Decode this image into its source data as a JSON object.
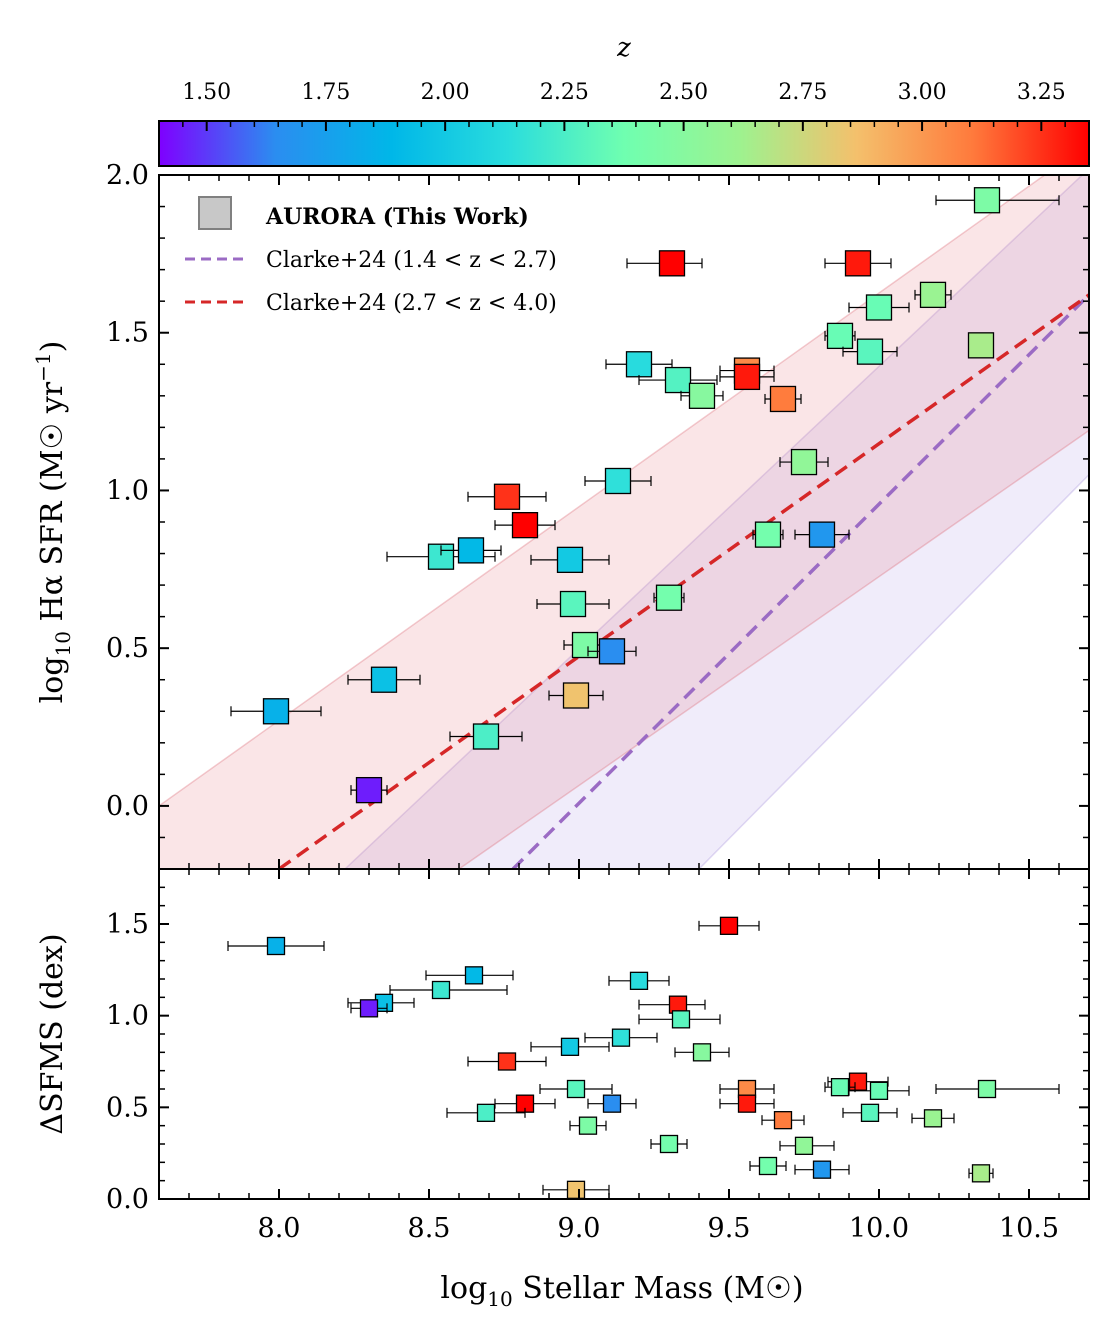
{
  "chart_data": {
    "type": "scatter",
    "colorbar": {
      "label": "z",
      "range": [
        1.4,
        3.35
      ],
      "ticks": [
        1.5,
        1.75,
        2.0,
        2.25,
        2.5,
        2.75,
        3.0,
        3.25
      ],
      "tick_labels": [
        "1.50",
        "1.75",
        "2.00",
        "2.25",
        "2.50",
        "2.75",
        "3.00",
        "3.25"
      ],
      "colormap": [
        "#7f00ff",
        "#2b8df0",
        "#00b7e8",
        "#2adddd",
        "#6fffb0",
        "#9ef28f",
        "#f4c06c",
        "#ff7a3c",
        "#ff0000"
      ]
    },
    "x_axis": {
      "label": "log10 Stellar Mass (M☉)",
      "label_main": "log",
      "label_sub": "10",
      "label_rest": " Stellar Mass (M☉)",
      "xlim": [
        7.6,
        10.7
      ],
      "ticks": [
        8.0,
        8.5,
        9.0,
        9.5,
        10.0,
        10.5
      ],
      "tick_labels": [
        "8.0",
        "8.5",
        "9.0",
        "9.5",
        "10.0",
        "10.5"
      ]
    },
    "top_panel": {
      "ylabel": "log10 Hα SFR (M☉ yr⁻¹)",
      "ylabel_main": "log",
      "ylabel_sub": "10",
      "ylabel_mid": " Hα SFR (M☉ yr",
      "ylabel_sup": "−1",
      "ylabel_end": ")",
      "ylim": [
        -0.2,
        2.0
      ],
      "ticks": [
        0.0,
        0.5,
        1.0,
        1.5,
        2.0
      ],
      "tick_labels": [
        "0.0",
        "0.5",
        "1.0",
        "1.5",
        "2.0"
      ],
      "legend": {
        "placement": "top-left",
        "aurora_label": "AURORA (This Work)",
        "clarke_low_label": "Clarke+24 (1.4 < z < 2.7)",
        "clarke_high_label": "Clarke+24 (2.7 < z < 4.0)",
        "marker_color": "#c8c8c8",
        "clarke_low_color": "#9b6bc4",
        "clarke_high_color": "#d62728"
      },
      "relations": [
        {
          "name": "Clarke+24 (1.4 < z < 2.7)",
          "color": "#9b6bc4",
          "line": [
            [
              8.78,
              -0.2
            ],
            [
              10.7,
              1.62
            ]
          ],
          "band_upper": [
            [
              8.22,
              -0.2
            ],
            [
              10.7,
              2.02
            ]
          ],
          "band_lower": [
            [
              9.4,
              -0.2
            ],
            [
              10.7,
              1.05
            ]
          ]
        },
        {
          "name": "Clarke+24 (2.7 < z < 4.0)",
          "color": "#d62728",
          "line": [
            [
              8.0,
              -0.2
            ],
            [
              10.7,
              1.62
            ]
          ],
          "band_upper": [
            [
              7.6,
              0.0
            ],
            [
              10.7,
              2.1
            ]
          ],
          "band_lower": [
            [
              8.6,
              -0.2
            ],
            [
              10.7,
              1.19
            ]
          ]
        }
      ],
      "points": [
        {
          "x": 10.36,
          "y": 1.92,
          "xerr": [
            0.17,
            0.24
          ],
          "z": 2.45
        },
        {
          "x": 9.31,
          "y": 1.72,
          "xerr": [
            0.15,
            0.1
          ],
          "z": 3.35
        },
        {
          "x": 9.93,
          "y": 1.72,
          "xerr": [
            0.11,
            0.11
          ],
          "z": 3.3
        },
        {
          "x": 10.18,
          "y": 1.62,
          "xerr": [
            0.06,
            0.06
          ],
          "z": 2.6
        },
        {
          "x": 10.0,
          "y": 1.58,
          "xerr": [
            0.1,
            0.1
          ],
          "z": 2.35
        },
        {
          "x": 9.87,
          "y": 1.49,
          "xerr": [
            0.05,
            0.05
          ],
          "z": 2.35
        },
        {
          "x": 9.97,
          "y": 1.44,
          "xerr": [
            0.09,
            0.09
          ],
          "z": 2.3
        },
        {
          "x": 10.34,
          "y": 1.46,
          "xerr": [
            0.0,
            0.0
          ],
          "z": 2.65
        },
        {
          "x": 9.2,
          "y": 1.4,
          "xerr": [
            0.11,
            0.11
          ],
          "z": 2.12
        },
        {
          "x": 9.33,
          "y": 1.35,
          "xerr": [
            0.13,
            0.13
          ],
          "z": 2.28
        },
        {
          "x": 9.41,
          "y": 1.3,
          "xerr": [
            0.07,
            0.07
          ],
          "z": 2.5
        },
        {
          "x": 9.56,
          "y": 1.38,
          "xerr": [
            0.09,
            0.09
          ],
          "z": 3.05
        },
        {
          "x": 9.56,
          "y": 1.36,
          "xerr": [
            0.09,
            0.09
          ],
          "z": 3.3
        },
        {
          "x": 9.68,
          "y": 1.29,
          "xerr": [
            0.06,
            0.06
          ],
          "z": 3.1
        },
        {
          "x": 9.13,
          "y": 1.03,
          "xerr": [
            0.11,
            0.11
          ],
          "z": 2.15
        },
        {
          "x": 9.75,
          "y": 1.09,
          "xerr": [
            0.08,
            0.08
          ],
          "z": 2.55
        },
        {
          "x": 8.76,
          "y": 0.98,
          "xerr": [
            0.13,
            0.13
          ],
          "z": 3.25
        },
        {
          "x": 8.82,
          "y": 0.89,
          "xerr": [
            0.1,
            0.1
          ],
          "z": 3.35
        },
        {
          "x": 8.54,
          "y": 0.79,
          "xerr": [
            0.18,
            0.18
          ],
          "z": 2.2
        },
        {
          "x": 8.64,
          "y": 0.81,
          "xerr": [
            0.1,
            0.1
          ],
          "z": 1.9
        },
        {
          "x": 8.97,
          "y": 0.78,
          "xerr": [
            0.13,
            0.13
          ],
          "z": 2.0
        },
        {
          "x": 9.63,
          "y": 0.86,
          "xerr": [
            0.05,
            0.05
          ],
          "z": 2.4
        },
        {
          "x": 9.81,
          "y": 0.86,
          "xerr": [
            0.09,
            0.09
          ],
          "z": 1.7
        },
        {
          "x": 8.98,
          "y": 0.64,
          "xerr": [
            0.12,
            0.12
          ],
          "z": 2.3
        },
        {
          "x": 9.3,
          "y": 0.66,
          "xerr": [
            0.05,
            0.05
          ],
          "z": 2.4
        },
        {
          "x": 9.02,
          "y": 0.51,
          "xerr": [
            0.07,
            0.07
          ],
          "z": 2.45
        },
        {
          "x": 9.11,
          "y": 0.49,
          "xerr": [
            0.08,
            0.08
          ],
          "z": 1.65
        },
        {
          "x": 8.35,
          "y": 0.4,
          "xerr": [
            0.12,
            0.12
          ],
          "z": 1.95
        },
        {
          "x": 7.99,
          "y": 0.3,
          "xerr": [
            0.15,
            0.15
          ],
          "z": 1.85
        },
        {
          "x": 8.99,
          "y": 0.35,
          "xerr": [
            0.09,
            0.09
          ],
          "z": 2.85
        },
        {
          "x": 8.69,
          "y": 0.22,
          "xerr": [
            0.12,
            0.12
          ],
          "z": 2.25
        },
        {
          "x": 8.3,
          "y": 0.05,
          "xerr": [
            0.06,
            0.06
          ],
          "z": 1.45
        }
      ]
    },
    "bottom_panel": {
      "ylabel": "ΔSFMS (dex)",
      "ylim": [
        0.0,
        1.8
      ],
      "ticks": [
        0.0,
        0.5,
        1.0,
        1.5
      ],
      "tick_labels": [
        "0.0",
        "0.5",
        "1.0",
        "1.5"
      ],
      "points": [
        {
          "x": 9.5,
          "y": 1.49,
          "xerr": [
            0.1,
            0.1
          ],
          "z": 3.35
        },
        {
          "x": 7.99,
          "y": 1.38,
          "xerr": [
            0.16,
            0.16
          ],
          "z": 1.85
        },
        {
          "x": 8.65,
          "y": 1.22,
          "xerr": [
            0.16,
            0.13
          ],
          "z": 1.9
        },
        {
          "x": 9.2,
          "y": 1.19,
          "xerr": [
            0.1,
            0.1
          ],
          "z": 2.12
        },
        {
          "x": 8.54,
          "y": 1.14,
          "xerr": [
            0.17,
            0.22
          ],
          "z": 2.2
        },
        {
          "x": 8.35,
          "y": 1.07,
          "xerr": [
            0.12,
            0.1
          ],
          "z": 1.95
        },
        {
          "x": 8.3,
          "y": 1.04,
          "xerr": [
            0.06,
            0.06
          ],
          "z": 1.45
        },
        {
          "x": 9.33,
          "y": 1.06,
          "xerr": [
            0.13,
            0.09
          ],
          "z": 3.3
        },
        {
          "x": 9.34,
          "y": 0.98,
          "xerr": [
            0.14,
            0.13
          ],
          "z": 2.3
        },
        {
          "x": 9.14,
          "y": 0.88,
          "xerr": [
            0.12,
            0.12
          ],
          "z": 2.15
        },
        {
          "x": 8.97,
          "y": 0.83,
          "xerr": [
            0.13,
            0.13
          ],
          "z": 2.0
        },
        {
          "x": 9.41,
          "y": 0.8,
          "xerr": [
            0.09,
            0.09
          ],
          "z": 2.5
        },
        {
          "x": 8.76,
          "y": 0.75,
          "xerr": [
            0.13,
            0.13
          ],
          "z": 3.25
        },
        {
          "x": 9.93,
          "y": 0.64,
          "xerr": [
            0.1,
            0.1
          ],
          "z": 3.3
        },
        {
          "x": 9.87,
          "y": 0.61,
          "xerr": [
            0.05,
            0.05
          ],
          "z": 2.35
        },
        {
          "x": 9.56,
          "y": 0.6,
          "xerr": [
            0.09,
            0.09
          ],
          "z": 3.05
        },
        {
          "x": 8.99,
          "y": 0.6,
          "xerr": [
            0.12,
            0.12
          ],
          "z": 2.3
        },
        {
          "x": 10.0,
          "y": 0.59,
          "xerr": [
            0.1,
            0.1
          ],
          "z": 2.35
        },
        {
          "x": 10.36,
          "y": 0.6,
          "xerr": [
            0.17,
            0.24
          ],
          "z": 2.45
        },
        {
          "x": 9.11,
          "y": 0.52,
          "xerr": [
            0.08,
            0.08
          ],
          "z": 1.65
        },
        {
          "x": 8.82,
          "y": 0.52,
          "xerr": [
            0.1,
            0.1
          ],
          "z": 3.35
        },
        {
          "x": 9.56,
          "y": 0.52,
          "xerr": [
            0.09,
            0.09
          ],
          "z": 3.3
        },
        {
          "x": 8.69,
          "y": 0.47,
          "xerr": [
            0.13,
            0.13
          ],
          "z": 2.25
        },
        {
          "x": 9.97,
          "y": 0.47,
          "xerr": [
            0.09,
            0.09
          ],
          "z": 2.3
        },
        {
          "x": 10.18,
          "y": 0.44,
          "xerr": [
            0.07,
            0.07
          ],
          "z": 2.6
        },
        {
          "x": 9.68,
          "y": 0.43,
          "xerr": [
            0.07,
            0.07
          ],
          "z": 3.1
        },
        {
          "x": 9.03,
          "y": 0.4,
          "xerr": [
            0.06,
            0.06
          ],
          "z": 2.45
        },
        {
          "x": 9.3,
          "y": 0.3,
          "xerr": [
            0.06,
            0.06
          ],
          "z": 2.4
        },
        {
          "x": 9.75,
          "y": 0.29,
          "xerr": [
            0.08,
            0.1
          ],
          "z": 2.55
        },
        {
          "x": 9.63,
          "y": 0.18,
          "xerr": [
            0.06,
            0.06
          ],
          "z": 2.4
        },
        {
          "x": 9.81,
          "y": 0.16,
          "xerr": [
            0.09,
            0.09
          ],
          "z": 1.7
        },
        {
          "x": 10.34,
          "y": 0.14,
          "xerr": [
            0.04,
            0.04
          ],
          "z": 2.65
        },
        {
          "x": 8.99,
          "y": 0.05,
          "xerr": [
            0.11,
            0.11
          ],
          "z": 2.85
        }
      ]
    }
  }
}
